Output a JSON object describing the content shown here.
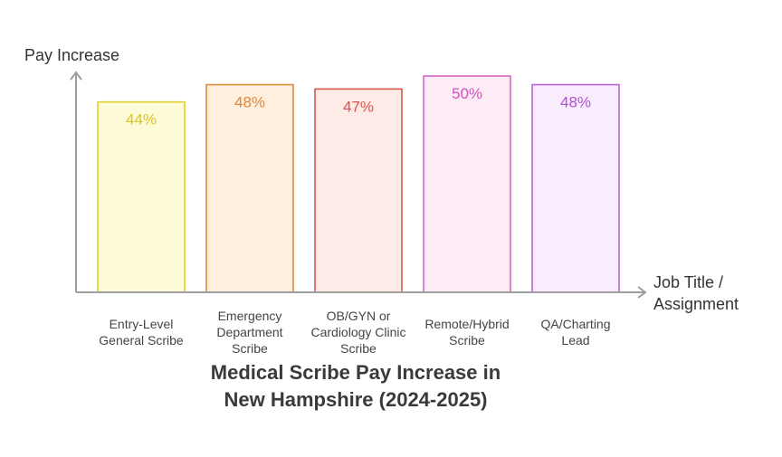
{
  "chart_data": {
    "type": "bar",
    "title": [
      "Medical Scribe Pay Increase in",
      "New Hampshire (2024-2025)"
    ],
    "ylabel": "Pay Increase",
    "xlabel": [
      "Job Title /",
      "Assignment"
    ],
    "ylim": [
      0,
      50
    ],
    "grid": false,
    "legend": "none",
    "categories": [
      [
        "Entry-Level",
        "General Scribe"
      ],
      [
        "Emergency",
        "Department",
        "Scribe"
      ],
      [
        "OB/GYN or",
        "Cardiology Clinic",
        "Scribe"
      ],
      [
        "Remote/Hybrid",
        "Scribe"
      ],
      [
        "QA/Charting",
        "Lead"
      ]
    ],
    "values": [
      44,
      48,
      47,
      50,
      48
    ],
    "value_labels": [
      "44%",
      "48%",
      "47%",
      "50%",
      "48%"
    ],
    "colors": [
      {
        "fill": "#FEFBD9",
        "stroke": "#E2CF2E",
        "text": "#DBC41F"
      },
      {
        "fill": "#FEEFDF",
        "stroke": "#E08A3C",
        "text": "#E0873A"
      },
      {
        "fill": "#FEEBE8",
        "stroke": "#D45A52",
        "text": "#E0504A"
      },
      {
        "fill": "#FDEBF6",
        "stroke": "#D668C4",
        "text": "#D24FBE"
      },
      {
        "fill": "#F9EDFD",
        "stroke": "#BD62DE",
        "text": "#B14FD6"
      }
    ],
    "axis_color": "#9E9E9E"
  }
}
